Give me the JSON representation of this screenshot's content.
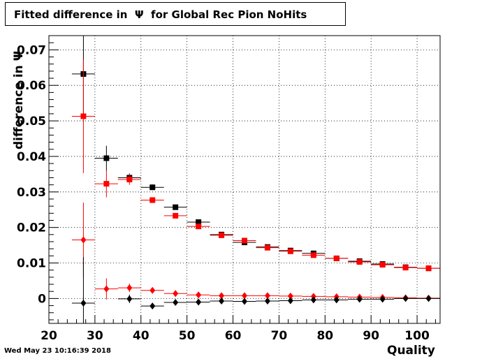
{
  "title": "Fitted difference in  Ψ  for Global Rec Pion NoHits",
  "footer": "Wed May 23 10:16:39 2018",
  "chart_data": {
    "type": "scatter",
    "xlabel": "Quality",
    "ylabel": "difference in Ψ",
    "xlim": [
      20,
      105
    ],
    "ylim": [
      -0.007,
      0.074
    ],
    "xticks": [
      20,
      30,
      40,
      50,
      60,
      70,
      80,
      90,
      100
    ],
    "xtick_labels": [
      "20",
      "30",
      "40",
      "50",
      "60",
      "70",
      "80",
      "90",
      "100"
    ],
    "yticks": [
      0,
      0.01,
      0.02,
      0.03,
      0.04,
      0.05,
      0.06,
      0.07
    ],
    "ytick_labels": [
      "0",
      "0.01",
      "0.02",
      "0.03",
      "0.04",
      "0.05",
      "0.06",
      "0.07"
    ],
    "grid": true,
    "x_error": 2.5,
    "series": [
      {
        "marker": "square",
        "color": "#000000",
        "x": [
          27.5,
          32.5,
          37.5,
          42.5,
          47.5,
          52.5,
          57.5,
          62.5,
          67.5,
          72.5,
          77.5,
          82.5,
          87.5,
          92.5,
          97.5,
          102.5
        ],
        "y": [
          0.0632,
          0.0395,
          0.034,
          0.0313,
          0.0257,
          0.0215,
          0.018,
          0.0158,
          0.0145,
          0.0135,
          0.0127,
          0.0113,
          0.0105,
          0.0097,
          0.0088,
          0.0085
        ],
        "yerr": [
          0.012,
          0.0035,
          0.0012,
          0.0008,
          0.0005,
          0.0004,
          0.0003,
          0.0003,
          0.0003,
          0.0003,
          0.0002,
          0.0002,
          0.0002,
          0.0002,
          0.0002,
          0.0002
        ]
      },
      {
        "marker": "square",
        "color": "#ff0000",
        "x": [
          27.5,
          32.5,
          37.5,
          42.5,
          47.5,
          52.5,
          57.5,
          62.5,
          67.5,
          72.5,
          77.5,
          82.5,
          87.5,
          92.5,
          97.5,
          102.5
        ],
        "y": [
          0.0513,
          0.0323,
          0.0335,
          0.0277,
          0.0233,
          0.0203,
          0.0178,
          0.0163,
          0.0143,
          0.0133,
          0.0122,
          0.0113,
          0.0103,
          0.0095,
          0.0087,
          0.0085
        ],
        "yerr": [
          0.016,
          0.0038,
          0.0015,
          0.0008,
          0.0005,
          0.0004,
          0.0003,
          0.0003,
          0.0003,
          0.0003,
          0.0002,
          0.0002,
          0.0002,
          0.0002,
          0.0002,
          0.0002
        ]
      },
      {
        "marker": "diamond",
        "color": "#ff0000",
        "x": [
          27.5,
          32.5,
          37.5,
          42.5,
          47.5,
          52.5,
          57.5,
          62.5,
          67.5,
          72.5,
          77.5,
          82.5,
          87.5,
          92.5,
          97.5,
          102.5
        ],
        "y": [
          0.0165,
          0.0027,
          0.003,
          0.0023,
          0.0014,
          0.001,
          0.0008,
          0.0008,
          0.0008,
          0.0007,
          0.0006,
          0.0005,
          0.0004,
          0.0003,
          0.0002,
          0.0001
        ],
        "yerr": [
          0.0105,
          0.003,
          0.0012,
          0.0006,
          0.0004,
          0.0003,
          0.0003,
          0.0002,
          0.0002,
          0.0002,
          0.0002,
          0.0002,
          0.0001,
          0.0001,
          0.0001,
          0.0001
        ]
      },
      {
        "marker": "diamond",
        "color": "#000000",
        "x": [
          27.5,
          37.5,
          42.5,
          47.5,
          52.5,
          57.5,
          62.5,
          67.5,
          72.5,
          77.5,
          82.5,
          87.5,
          92.5,
          97.5,
          102.5
        ],
        "y": [
          -0.0013,
          -0.0001,
          -0.0021,
          -0.0011,
          -0.001,
          -0.0007,
          -0.0008,
          -0.0007,
          -0.0006,
          -0.0004,
          -0.0004,
          -0.0002,
          -0.0002,
          0.0,
          0.0
        ],
        "yerr": [
          0.013,
          0.0012,
          0.0006,
          0.0004,
          0.0003,
          0.0003,
          0.0002,
          0.0002,
          0.0002,
          0.0002,
          0.0002,
          0.0001,
          0.0001,
          0.0001,
          0.0001
        ]
      }
    ]
  }
}
